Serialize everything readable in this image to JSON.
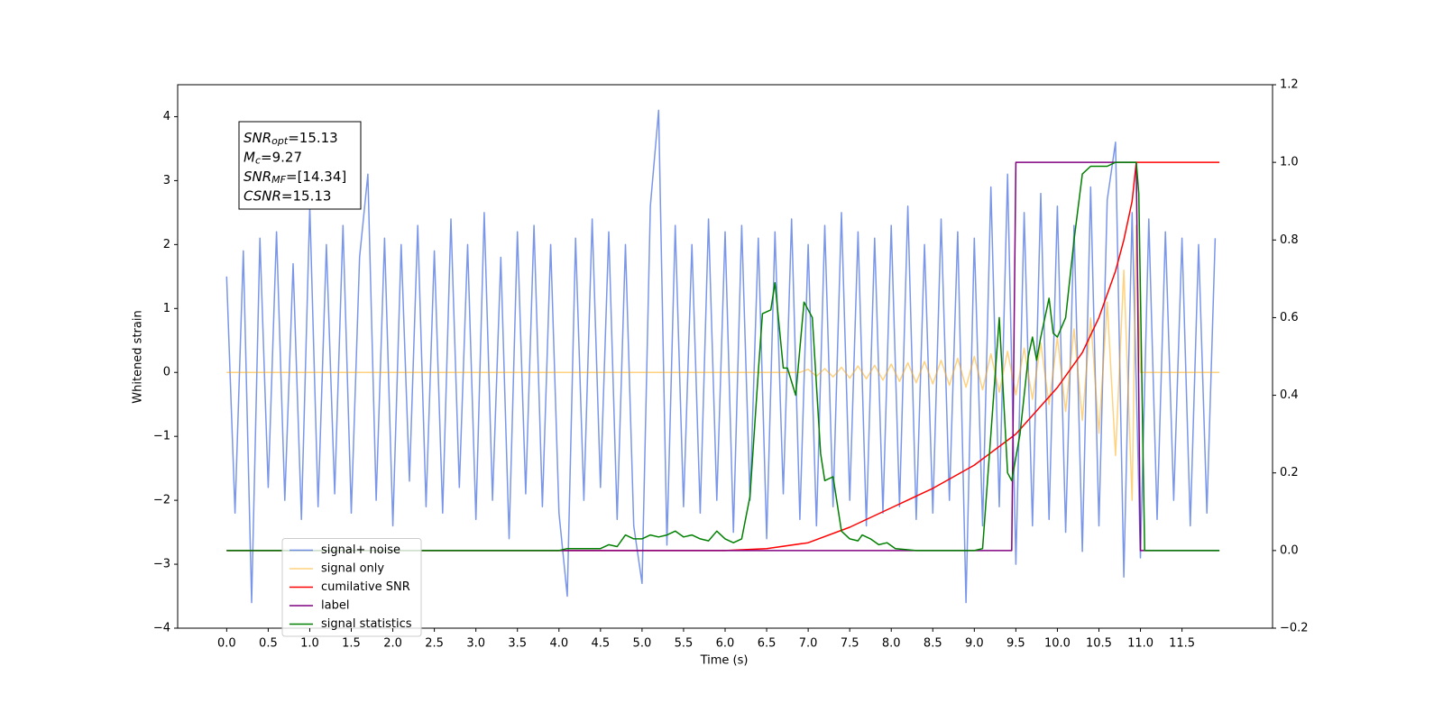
{
  "chart_data": {
    "type": "line",
    "xlabel": "Time (s)",
    "ylabel": "Whitened strain",
    "xlim": [
      -0.59,
      12.59
    ],
    "ylim": [
      -4.0,
      4.5
    ],
    "y2lim": [
      -0.2,
      1.2
    ],
    "xticks": [
      {
        "value": 0,
        "label": "0.0"
      },
      0.5,
      {
        "value": 1,
        "label": "1.0"
      },
      1.5,
      {
        "value": 2,
        "label": "2.0"
      },
      2.5,
      {
        "value": 3,
        "label": "3.0"
      },
      3.5,
      {
        "value": 4,
        "label": "4.0"
      },
      4.5,
      {
        "value": 5,
        "label": "5.0"
      },
      5.5,
      {
        "value": 6,
        "label": "6.0"
      },
      6.5,
      {
        "value": 7,
        "label": "7.0"
      },
      7.5,
      {
        "value": 8,
        "label": "8.0"
      },
      8.5,
      {
        "value": 9,
        "label": "9.0"
      },
      9.5,
      {
        "value": 10,
        "label": "10.0"
      },
      10.5,
      {
        "value": 11,
        "label": "11.0"
      },
      11.5
    ],
    "yticks": [
      {
        "value": -4,
        "label": "−4"
      },
      {
        "value": -3,
        "label": "−3"
      },
      {
        "value": -2,
        "label": "−2"
      },
      {
        "value": -1,
        "label": "−1"
      },
      0,
      1,
      2,
      3,
      4
    ],
    "y2ticks": [
      {
        "value": -0.2,
        "label": "−0.2"
      },
      {
        "value": 0,
        "label": "0.0"
      },
      0.2,
      0.4,
      0.6,
      0.8,
      {
        "value": 1,
        "label": "1.0"
      },
      1.2
    ],
    "legend": "lower left",
    "annotations": [
      {
        "main": "SNR",
        "sub": "opt",
        "rest": "=15.13"
      },
      {
        "main": "M",
        "sub": "c",
        "rest": "=9.27"
      },
      {
        "main": "SNR",
        "sub": "MF",
        "rest": "=[14.34]"
      },
      {
        "main": "CSNR",
        "sub": null,
        "rest": "=15.13"
      }
    ],
    "series": [
      {
        "name": "signal+ noise",
        "color": "#4169e1",
        "opacity": 0.7,
        "axis": "y",
        "x": [
          0.0,
          0.1,
          0.2,
          0.3,
          0.4,
          0.5,
          0.6,
          0.7,
          0.8,
          0.9,
          1.0,
          1.1,
          1.2,
          1.3,
          1.4,
          1.5,
          1.6,
          1.7,
          1.8,
          1.9,
          2.0,
          2.1,
          2.2,
          2.3,
          2.4,
          2.5,
          2.6,
          2.7,
          2.8,
          2.9,
          3.0,
          3.1,
          3.2,
          3.3,
          3.4,
          3.5,
          3.6,
          3.7,
          3.8,
          3.9,
          4.0,
          4.1,
          4.2,
          4.3,
          4.4,
          4.5,
          4.6,
          4.7,
          4.8,
          4.9,
          5.0,
          5.1,
          5.2,
          5.3,
          5.4,
          5.5,
          5.6,
          5.7,
          5.8,
          5.9,
          6.0,
          6.1,
          6.2,
          6.3,
          6.4,
          6.5,
          6.6,
          6.7,
          6.8,
          6.9,
          7.0,
          7.1,
          7.2,
          7.3,
          7.4,
          7.5,
          7.6,
          7.7,
          7.8,
          7.9,
          8.0,
          8.1,
          8.2,
          8.3,
          8.4,
          8.5,
          8.6,
          8.7,
          8.8,
          8.9,
          9.0,
          9.1,
          9.2,
          9.3,
          9.4,
          9.5,
          9.6,
          9.7,
          9.8,
          9.9,
          10.0,
          10.1,
          10.2,
          10.3,
          10.4,
          10.5,
          10.6,
          10.7,
          10.8,
          10.9,
          11.0,
          11.1,
          11.2,
          11.3,
          11.4,
          11.5,
          11.6,
          11.7,
          11.8,
          11.9
        ],
        "values": [
          1.5,
          -2.2,
          1.9,
          -3.6,
          2.1,
          -1.8,
          2.2,
          -2.0,
          1.7,
          -2.3,
          2.6,
          -2.1,
          2.0,
          -1.9,
          2.3,
          -2.2,
          1.8,
          3.1,
          -2.0,
          2.1,
          -2.4,
          2.0,
          -1.7,
          2.3,
          -2.1,
          1.9,
          -2.2,
          2.4,
          -1.8,
          2.0,
          -2.3,
          2.5,
          -2.0,
          1.8,
          -2.6,
          2.2,
          -1.9,
          2.3,
          -2.1,
          2.0,
          -2.2,
          -3.5,
          2.1,
          -2.0,
          2.4,
          -1.8,
          2.2,
          -2.3,
          2.0,
          -2.4,
          -3.3,
          2.6,
          4.1,
          -2.7,
          2.3,
          -2.1,
          2.0,
          -2.2,
          2.4,
          -2.0,
          2.2,
          -2.5,
          2.3,
          -2.0,
          2.1,
          -2.6,
          2.2,
          -1.9,
          2.4,
          -2.3,
          2.0,
          -2.4,
          2.3,
          -2.1,
          2.5,
          -2.0,
          2.2,
          -2.4,
          2.1,
          -2.2,
          2.3,
          -2.1,
          2.6,
          -2.3,
          2.0,
          -2.2,
          2.4,
          -2.0,
          2.2,
          -3.6,
          2.1,
          -2.4,
          2.9,
          -2.1,
          3.1,
          -3.0,
          2.5,
          -2.4,
          2.8,
          -2.3,
          2.6,
          -2.5,
          2.3,
          -2.8,
          2.9,
          -2.4,
          2.7,
          3.6,
          -3.2,
          2.5,
          -2.9,
          2.4,
          -2.3,
          2.2,
          -2.0,
          2.1,
          -2.4,
          2.0,
          -2.2,
          2.1
        ]
      },
      {
        "name": "signal only",
        "color": "#ffa500",
        "opacity": 0.5,
        "axis": "y",
        "x": [
          0.0,
          6.9,
          7.0,
          7.1,
          7.2,
          7.3,
          7.4,
          7.5,
          7.6,
          7.7,
          7.8,
          7.9,
          8.0,
          8.1,
          8.2,
          8.3,
          8.4,
          8.5,
          8.6,
          8.7,
          8.8,
          8.9,
          9.0,
          9.1,
          9.2,
          9.3,
          9.4,
          9.5,
          9.6,
          9.7,
          9.8,
          9.9,
          10.0,
          10.1,
          10.2,
          10.3,
          10.4,
          10.5,
          10.6,
          10.7,
          10.8,
          10.9,
          10.95,
          11.0,
          11.95
        ],
        "values": [
          0,
          0,
          0.05,
          -0.06,
          0.06,
          -0.07,
          0.08,
          -0.09,
          0.1,
          -0.1,
          0.11,
          -0.12,
          0.13,
          -0.14,
          0.15,
          -0.16,
          0.17,
          -0.18,
          0.19,
          -0.2,
          0.22,
          -0.23,
          0.25,
          -0.27,
          0.29,
          -0.31,
          0.33,
          -0.35,
          0.38,
          -0.42,
          0.46,
          -0.5,
          0.55,
          -0.61,
          0.68,
          -0.75,
          0.85,
          -0.95,
          1.1,
          -1.3,
          1.6,
          -2.0,
          2.3,
          0,
          0
        ]
      },
      {
        "name": "cumilative SNR",
        "color": "#ff0000",
        "axis": "y2",
        "x": [
          0.0,
          6.0,
          6.5,
          7.0,
          7.5,
          8.0,
          8.5,
          9.0,
          9.5,
          10.0,
          10.3,
          10.5,
          10.7,
          10.8,
          10.9,
          10.95,
          11.0,
          11.95
        ],
        "values": [
          0,
          0,
          0.005,
          0.02,
          0.06,
          0.11,
          0.16,
          0.22,
          0.3,
          0.42,
          0.51,
          0.6,
          0.72,
          0.8,
          0.9,
          1.0,
          1.0,
          1.0
        ]
      },
      {
        "name": "label",
        "color": "#800080",
        "axis": "y2",
        "x": [
          0.0,
          9.45,
          9.5,
          10.95,
          11.0,
          11.95
        ],
        "values": [
          0,
          0,
          1,
          1,
          0,
          0
        ]
      },
      {
        "name": "signal statistics",
        "color": "#008000",
        "axis": "y2",
        "x": [
          0.0,
          4.0,
          4.1,
          4.5,
          4.6,
          4.7,
          4.8,
          4.9,
          5.0,
          5.1,
          5.2,
          5.3,
          5.4,
          5.5,
          5.6,
          5.7,
          5.8,
          5.9,
          6.0,
          6.1,
          6.2,
          6.3,
          6.4,
          6.45,
          6.55,
          6.6,
          6.7,
          6.75,
          6.85,
          6.95,
          7.05,
          7.15,
          7.2,
          7.3,
          7.4,
          7.5,
          7.6,
          7.65,
          7.75,
          7.85,
          7.95,
          8.05,
          8.3,
          9.0,
          9.1,
          9.2,
          9.3,
          9.4,
          9.45,
          9.55,
          9.65,
          9.7,
          9.75,
          9.8,
          9.9,
          9.95,
          10.0,
          10.1,
          10.2,
          10.3,
          10.4,
          10.5,
          10.6,
          10.7,
          10.95,
          10.98,
          11.05,
          11.95
        ],
        "values": [
          0,
          0,
          0.005,
          0.005,
          0.015,
          0.01,
          0.04,
          0.03,
          0.03,
          0.04,
          0.035,
          0.04,
          0.05,
          0.035,
          0.04,
          0.03,
          0.025,
          0.05,
          0.03,
          0.02,
          0.03,
          0.14,
          0.46,
          0.61,
          0.62,
          0.69,
          0.47,
          0.47,
          0.4,
          0.64,
          0.6,
          0.25,
          0.18,
          0.19,
          0.05,
          0.03,
          0.025,
          0.04,
          0.03,
          0.015,
          0.02,
          0.005,
          0,
          0,
          0.005,
          0.3,
          0.6,
          0.2,
          0.18,
          0.3,
          0.5,
          0.55,
          0.49,
          0.55,
          0.65,
          0.56,
          0.55,
          0.6,
          0.8,
          0.97,
          0.99,
          0.99,
          0.99,
          1.0,
          1.0,
          0.92,
          0,
          0
        ]
      }
    ]
  }
}
